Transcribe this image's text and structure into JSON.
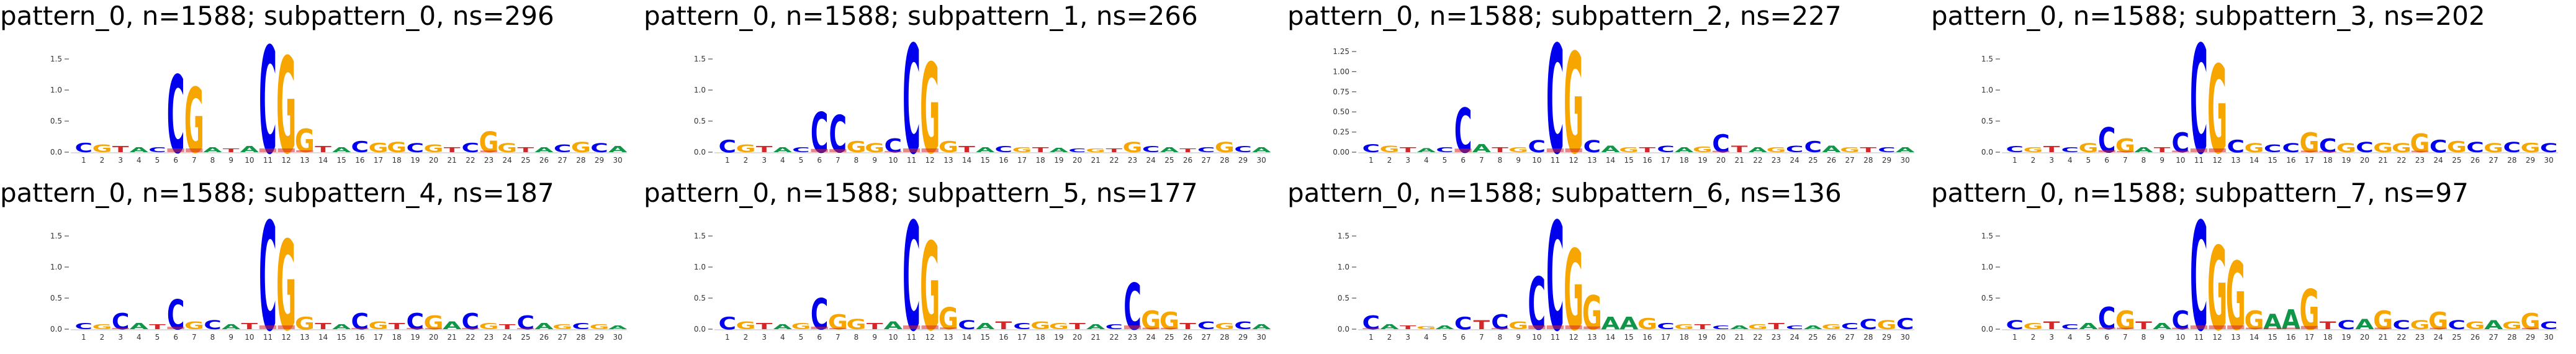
{
  "colors": {
    "A": "#109648",
    "C": "#0000ee",
    "G": "#f7a600",
    "T": "#d62728"
  },
  "chart_data": [
    {
      "type": "sequence-logo",
      "title": "pattern_0, n=1588; subpattern_0, ns=296",
      "ylim": [
        0,
        1.75
      ],
      "yticks": [
        "0.0",
        "0.5",
        "1.0",
        "1.5"
      ],
      "positions": [
        1,
        2,
        3,
        4,
        5,
        6,
        7,
        8,
        9,
        10,
        11,
        12,
        13,
        14,
        15,
        16,
        17,
        18,
        19,
        20,
        21,
        22,
        23,
        24,
        25,
        26,
        27,
        28,
        29,
        30
      ],
      "heights": [
        0.15,
        0.12,
        0.1,
        0.08,
        0.08,
        1.25,
        1.05,
        0.08,
        0.06,
        0.1,
        1.72,
        1.55,
        0.38,
        0.1,
        0.08,
        0.18,
        0.15,
        0.16,
        0.14,
        0.12,
        0.08,
        0.15,
        0.33,
        0.14,
        0.08,
        0.08,
        0.12,
        0.16,
        0.14,
        0.1
      ],
      "letters": [
        "C",
        "G",
        "T",
        "A",
        "C",
        "C",
        "G",
        "A",
        "T",
        "A",
        "C",
        "G",
        "G",
        "T",
        "A",
        "C",
        "G",
        "G",
        "C",
        "G",
        "T",
        "C",
        "G",
        "G",
        "T",
        "A",
        "C",
        "G",
        "C",
        "A"
      ]
    },
    {
      "type": "sequence-logo",
      "title": "pattern_0, n=1588; subpattern_1, ns=266",
      "ylim": [
        0,
        1.75
      ],
      "yticks": [
        "0.0",
        "0.5",
        "1.0",
        "1.5"
      ],
      "positions": [
        1,
        2,
        3,
        4,
        5,
        6,
        7,
        8,
        9,
        10,
        11,
        12,
        13,
        14,
        15,
        16,
        17,
        18,
        19,
        20,
        21,
        22,
        23,
        24,
        25,
        26,
        27,
        28,
        29,
        30
      ],
      "heights": [
        0.2,
        0.12,
        0.1,
        0.08,
        0.08,
        0.65,
        0.6,
        0.18,
        0.14,
        0.22,
        1.75,
        1.45,
        0.18,
        0.1,
        0.08,
        0.1,
        0.08,
        0.08,
        0.07,
        0.06,
        0.06,
        0.06,
        0.16,
        0.1,
        0.08,
        0.06,
        0.08,
        0.16,
        0.1,
        0.08
      ],
      "letters": [
        "C",
        "G",
        "T",
        "A",
        "C",
        "C",
        "C",
        "G",
        "G",
        "C",
        "C",
        "G",
        "G",
        "T",
        "A",
        "C",
        "G",
        "T",
        "A",
        "C",
        "G",
        "T",
        "G",
        "C",
        "A",
        "T",
        "C",
        "G",
        "C",
        "A"
      ]
    },
    {
      "type": "sequence-logo",
      "title": "pattern_0, n=1588; subpattern_2, ns=227",
      "ylim": [
        0,
        1.35
      ],
      "yticks": [
        "0.00",
        "0.25",
        "0.50",
        "0.75",
        "1.00",
        "1.25"
      ],
      "positions": [
        1,
        2,
        3,
        4,
        5,
        6,
        7,
        8,
        9,
        10,
        11,
        12,
        13,
        14,
        15,
        16,
        17,
        18,
        19,
        20,
        21,
        22,
        23,
        24,
        25,
        26,
        27,
        28,
        29,
        30
      ],
      "heights": [
        0.1,
        0.08,
        0.06,
        0.05,
        0.06,
        0.55,
        0.1,
        0.06,
        0.06,
        0.15,
        1.35,
        1.25,
        0.15,
        0.08,
        0.06,
        0.06,
        0.08,
        0.06,
        0.07,
        0.22,
        0.08,
        0.06,
        0.06,
        0.08,
        0.14,
        0.08,
        0.06,
        0.06,
        0.06,
        0.06
      ],
      "letters": [
        "C",
        "G",
        "T",
        "A",
        "C",
        "C",
        "A",
        "T",
        "G",
        "C",
        "C",
        "G",
        "C",
        "A",
        "G",
        "T",
        "C",
        "A",
        "G",
        "C",
        "T",
        "A",
        "G",
        "C",
        "C",
        "A",
        "G",
        "T",
        "C",
        "A"
      ]
    },
    {
      "type": "sequence-logo",
      "title": "pattern_0, n=1588; subpattern_3, ns=202",
      "ylim": [
        0,
        1.75
      ],
      "yticks": [
        "0.0",
        "0.5",
        "1.0",
        "1.5"
      ],
      "positions": [
        1,
        2,
        3,
        4,
        5,
        6,
        7,
        8,
        9,
        10,
        11,
        12,
        13,
        14,
        15,
        16,
        17,
        18,
        19,
        20,
        21,
        22,
        23,
        24,
        25,
        26,
        27,
        28,
        29,
        30
      ],
      "heights": [
        0.1,
        0.08,
        0.1,
        0.08,
        0.14,
        0.4,
        0.22,
        0.08,
        0.08,
        0.32,
        1.75,
        1.42,
        0.2,
        0.14,
        0.12,
        0.14,
        0.32,
        0.22,
        0.14,
        0.16,
        0.15,
        0.14,
        0.3,
        0.2,
        0.18,
        0.16,
        0.14,
        0.16,
        0.15,
        0.14
      ],
      "letters": [
        "C",
        "G",
        "T",
        "C",
        "G",
        "C",
        "G",
        "A",
        "T",
        "C",
        "C",
        "G",
        "C",
        "G",
        "C",
        "C",
        "G",
        "C",
        "G",
        "C",
        "G",
        "G",
        "G",
        "C",
        "G",
        "C",
        "G",
        "C",
        "G",
        "C"
      ]
    },
    {
      "type": "sequence-logo",
      "title": "pattern_0, n=1588; subpattern_4, ns=187",
      "ylim": [
        0,
        1.75
      ],
      "yticks": [
        "0.0",
        "0.5",
        "1.0",
        "1.5"
      ],
      "positions": [
        1,
        2,
        3,
        4,
        5,
        6,
        7,
        8,
        9,
        10,
        11,
        12,
        13,
        14,
        15,
        16,
        17,
        18,
        19,
        20,
        21,
        22,
        23,
        24,
        25,
        26,
        27,
        28,
        29,
        30
      ],
      "heights": [
        0.1,
        0.08,
        0.26,
        0.1,
        0.08,
        0.48,
        0.12,
        0.14,
        0.08,
        0.1,
        1.75,
        1.45,
        0.2,
        0.1,
        0.08,
        0.26,
        0.12,
        0.1,
        0.26,
        0.22,
        0.12,
        0.26,
        0.1,
        0.08,
        0.22,
        0.1,
        0.08,
        0.1,
        0.08,
        0.06
      ],
      "letters": [
        "C",
        "G",
        "C",
        "A",
        "T",
        "C",
        "G",
        "C",
        "A",
        "T",
        "C",
        "G",
        "G",
        "T",
        "A",
        "C",
        "G",
        "T",
        "C",
        "G",
        "A",
        "C",
        "G",
        "T",
        "C",
        "A",
        "G",
        "C",
        "G",
        "A"
      ]
    },
    {
      "type": "sequence-logo",
      "title": "pattern_0, n=1588; subpattern_5, ns=177",
      "ylim": [
        0,
        1.75
      ],
      "yticks": [
        "0.0",
        "0.5",
        "1.0",
        "1.5"
      ],
      "positions": [
        1,
        2,
        3,
        4,
        5,
        6,
        7,
        8,
        9,
        10,
        11,
        12,
        13,
        14,
        15,
        16,
        17,
        18,
        19,
        20,
        21,
        22,
        23,
        24,
        25,
        26,
        27,
        28,
        29,
        30
      ],
      "heights": [
        0.2,
        0.12,
        0.1,
        0.08,
        0.1,
        0.5,
        0.24,
        0.16,
        0.1,
        0.12,
        1.75,
        1.42,
        0.35,
        0.14,
        0.1,
        0.12,
        0.1,
        0.12,
        0.1,
        0.1,
        0.08,
        0.08,
        0.75,
        0.3,
        0.28,
        0.1,
        0.12,
        0.1,
        0.12,
        0.08
      ],
      "letters": [
        "C",
        "G",
        "T",
        "A",
        "G",
        "C",
        "G",
        "G",
        "T",
        "A",
        "C",
        "G",
        "G",
        "C",
        "A",
        "T",
        "C",
        "G",
        "G",
        "T",
        "A",
        "C",
        "C",
        "G",
        "G",
        "T",
        "C",
        "G",
        "C",
        "A"
      ]
    },
    {
      "type": "sequence-logo",
      "title": "pattern_0, n=1588; subpattern_6, ns=136",
      "ylim": [
        0,
        1.75
      ],
      "yticks": [
        "0.0",
        "0.5",
        "1.0",
        "1.5"
      ],
      "positions": [
        1,
        2,
        3,
        4,
        5,
        6,
        7,
        8,
        9,
        10,
        11,
        12,
        13,
        14,
        15,
        16,
        17,
        18,
        19,
        20,
        21,
        22,
        23,
        24,
        25,
        26,
        27,
        28,
        29,
        30
      ],
      "heights": [
        0.22,
        0.08,
        0.06,
        0.05,
        0.06,
        0.2,
        0.14,
        0.24,
        0.12,
        0.85,
        1.75,
        1.3,
        0.55,
        0.2,
        0.2,
        0.18,
        0.1,
        0.08,
        0.08,
        0.06,
        0.06,
        0.08,
        0.1,
        0.06,
        0.06,
        0.08,
        0.1,
        0.16,
        0.14,
        0.18
      ],
      "letters": [
        "C",
        "A",
        "T",
        "G",
        "A",
        "C",
        "T",
        "C",
        "G",
        "C",
        "C",
        "G",
        "G",
        "A",
        "A",
        "G",
        "C",
        "G",
        "T",
        "C",
        "A",
        "G",
        "T",
        "C",
        "A",
        "G",
        "C",
        "C",
        "G",
        "C"
      ]
    },
    {
      "type": "sequence-logo",
      "title": "pattern_0, n=1588; subpattern_7, ns=97",
      "ylim": [
        0,
        1.75
      ],
      "yticks": [
        "0.0",
        "0.5",
        "1.0",
        "1.5"
      ],
      "positions": [
        1,
        2,
        3,
        4,
        5,
        6,
        7,
        8,
        9,
        10,
        11,
        12,
        13,
        14,
        15,
        16,
        17,
        18,
        19,
        20,
        21,
        22,
        23,
        24,
        25,
        26,
        27,
        28,
        29,
        30
      ],
      "heights": [
        0.14,
        0.1,
        0.12,
        0.08,
        0.1,
        0.36,
        0.3,
        0.12,
        0.1,
        0.3,
        1.75,
        1.35,
        1.1,
        0.3,
        0.25,
        0.32,
        0.65,
        0.12,
        0.14,
        0.16,
        0.3,
        0.14,
        0.14,
        0.28,
        0.14,
        0.12,
        0.14,
        0.12,
        0.26,
        0.12
      ],
      "letters": [
        "C",
        "G",
        "T",
        "C",
        "A",
        "C",
        "G",
        "T",
        "A",
        "C",
        "C",
        "G",
        "G",
        "G",
        "A",
        "A",
        "G",
        "T",
        "C",
        "A",
        "G",
        "C",
        "G",
        "G",
        "C",
        "G",
        "A",
        "G",
        "G",
        "C"
      ]
    }
  ]
}
